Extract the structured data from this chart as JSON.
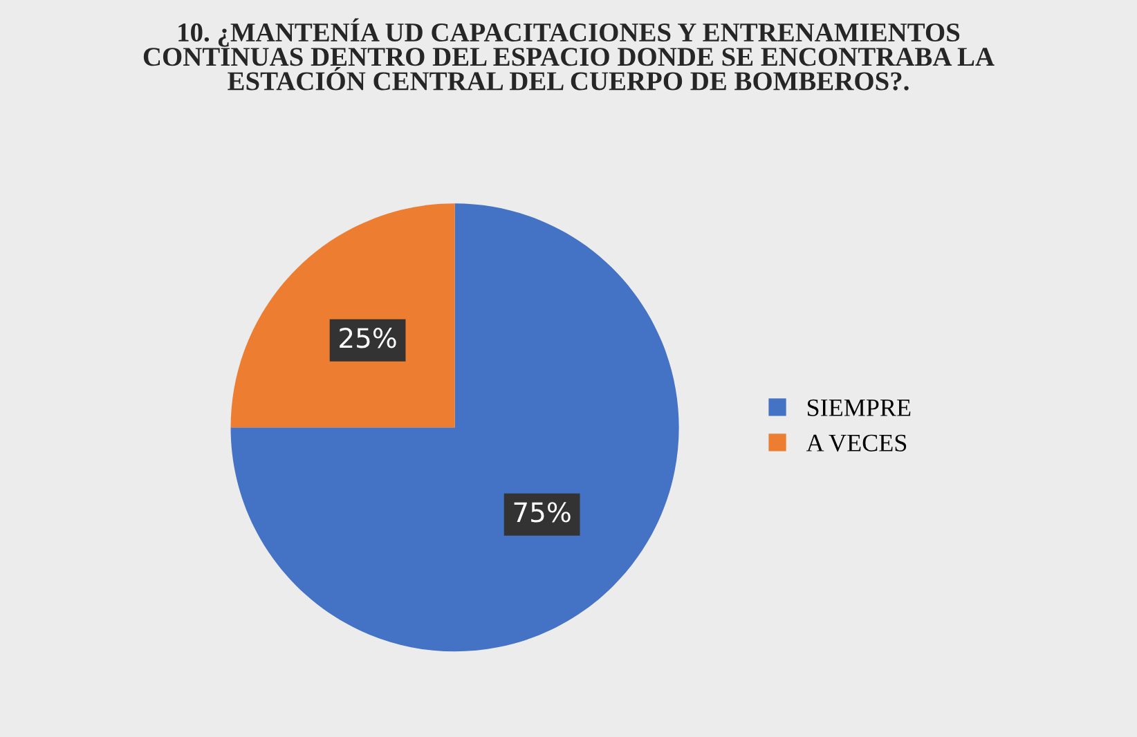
{
  "chart_data": {
    "type": "pie",
    "title": "10. ¿MANTENÍA UD CAPACITACIONES Y ENTRENAMIENTOS\nCONTINUAS DENTRO DEL ESPACIO DONDE SE ENCONTRABA LA\nESTACIÓN CENTRAL DEL CUERPO DE BOMBEROS?.",
    "categories": [
      "SIEMPRE",
      "A VECES"
    ],
    "values": [
      75,
      25
    ],
    "value_labels": [
      "75%",
      "25%"
    ],
    "colors": [
      "#4472c4",
      "#ed7d31"
    ],
    "legend": "right"
  }
}
